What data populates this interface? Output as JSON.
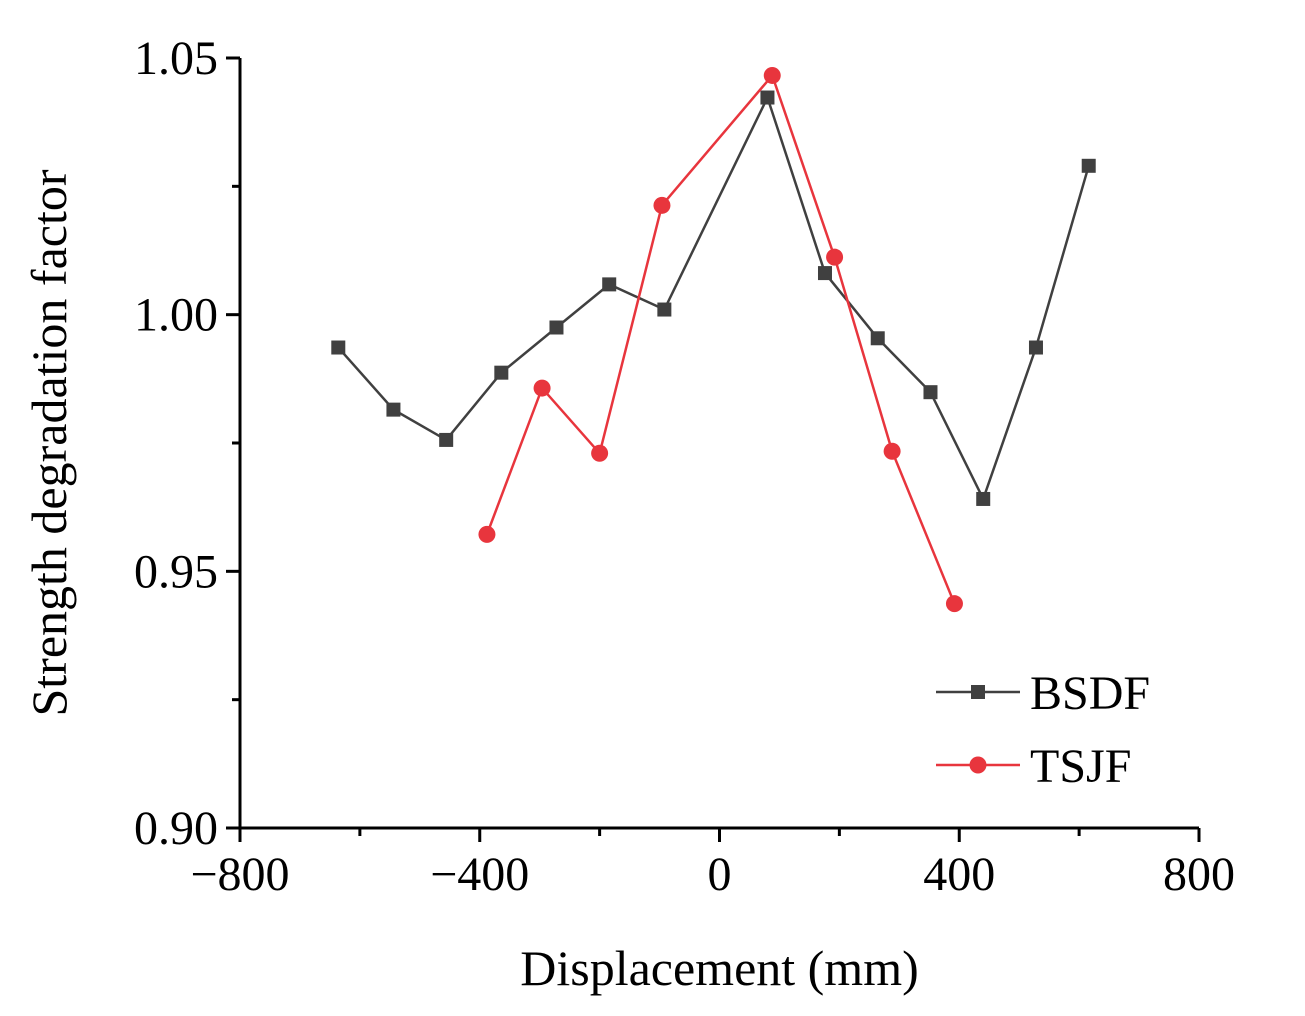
{
  "chart_data": {
    "type": "line",
    "title": "",
    "xlabel": "Displacement (mm)",
    "ylabel": "Strength degradation factor",
    "xlim": [
      -800,
      800
    ],
    "ylim": [
      0.9,
      1.05
    ],
    "xticks": [
      -800,
      -400,
      0,
      400,
      800
    ],
    "xtick_labels": [
      "−800",
      "−400",
      "0",
      "400",
      "800"
    ],
    "yticks": [
      0.9,
      0.95,
      1.0,
      1.05
    ],
    "ytick_labels": [
      "0.90",
      "0.95",
      "1.00",
      "1.05"
    ],
    "legend_position": "bottom-right",
    "series": [
      {
        "name": "BSDF",
        "color": "#404040",
        "marker": "square",
        "x": [
          -636,
          -544,
          -456,
          -364,
          -272,
          -184,
          -92,
          80,
          176,
          264,
          352,
          440,
          528,
          616
        ],
        "y": [
          0.9936,
          0.9815,
          0.9756,
          0.9887,
          0.9975,
          1.0059,
          1.001,
          1.0423,
          1.0081,
          0.9954,
          0.9849,
          0.9641,
          0.9936,
          1.029
        ]
      },
      {
        "name": "TSJF",
        "color": "#e8353d",
        "marker": "circle",
        "x": [
          -388,
          -296,
          -200,
          -96,
          88,
          192,
          288,
          392
        ],
        "y": [
          0.9572,
          0.9857,
          0.973,
          1.0213,
          1.0466,
          1.0112,
          0.9734,
          0.9437
        ]
      }
    ]
  }
}
